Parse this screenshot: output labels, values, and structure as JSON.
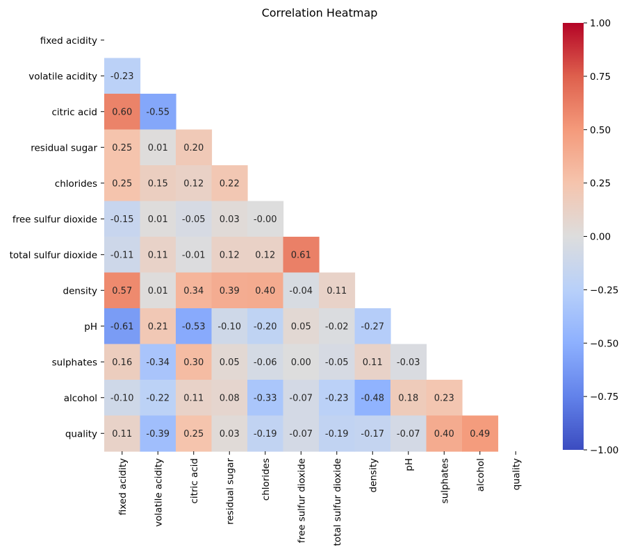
{
  "chart_data": {
    "type": "heatmap",
    "title": "Correlation Heatmap",
    "mask": "upper-triangle-including-diagonal",
    "colormap": "coolwarm",
    "vmin": -1,
    "vmax": 1,
    "annotation_format": "0.00",
    "variables": [
      "fixed acidity",
      "volatile acidity",
      "citric acid",
      "residual sugar",
      "chlorides",
      "free sulfur dioxide",
      "total sulfur dioxide",
      "density",
      "pH",
      "sulphates",
      "alcohol",
      "quality"
    ],
    "matrix": [
      [
        null,
        null,
        null,
        null,
        null,
        null,
        null,
        null,
        null,
        null,
        null,
        null
      ],
      [
        -0.23,
        null,
        null,
        null,
        null,
        null,
        null,
        null,
        null,
        null,
        null,
        null
      ],
      [
        0.6,
        -0.55,
        null,
        null,
        null,
        null,
        null,
        null,
        null,
        null,
        null,
        null
      ],
      [
        0.25,
        0.01,
        0.2,
        null,
        null,
        null,
        null,
        null,
        null,
        null,
        null,
        null
      ],
      [
        0.25,
        0.15,
        0.12,
        0.22,
        null,
        null,
        null,
        null,
        null,
        null,
        null,
        null
      ],
      [
        -0.15,
        0.01,
        -0.05,
        0.03,
        -0.0,
        null,
        null,
        null,
        null,
        null,
        null,
        null
      ],
      [
        -0.11,
        0.11,
        -0.01,
        0.12,
        0.12,
        0.61,
        null,
        null,
        null,
        null,
        null,
        null
      ],
      [
        0.57,
        0.01,
        0.34,
        0.39,
        0.4,
        -0.04,
        0.11,
        null,
        null,
        null,
        null,
        null
      ],
      [
        -0.61,
        0.21,
        -0.53,
        -0.1,
        -0.2,
        0.05,
        -0.02,
        -0.27,
        null,
        null,
        null,
        null
      ],
      [
        0.16,
        -0.34,
        0.3,
        0.05,
        -0.06,
        0.0,
        -0.05,
        0.11,
        -0.03,
        null,
        null,
        null
      ],
      [
        -0.1,
        -0.22,
        0.11,
        0.08,
        -0.33,
        -0.07,
        -0.23,
        -0.48,
        0.18,
        0.23,
        null,
        null
      ],
      [
        0.11,
        -0.39,
        0.25,
        0.03,
        -0.19,
        -0.07,
        -0.19,
        -0.17,
        -0.07,
        0.4,
        0.49,
        null
      ]
    ],
    "colorbar_ticks": [
      "1.00",
      "0.75",
      "0.50",
      "0.25",
      "0.00",
      "−0.25",
      "−0.50",
      "−0.75",
      "−1.00"
    ],
    "colorbar_tick_values": [
      1.0,
      0.75,
      0.5,
      0.25,
      0.0,
      -0.25,
      -0.5,
      -0.75,
      -1.0
    ],
    "colors": {
      "background": "#ffffff",
      "text_dark": "#262626",
      "text_light": "#ffffff",
      "axis": "#000000"
    }
  }
}
